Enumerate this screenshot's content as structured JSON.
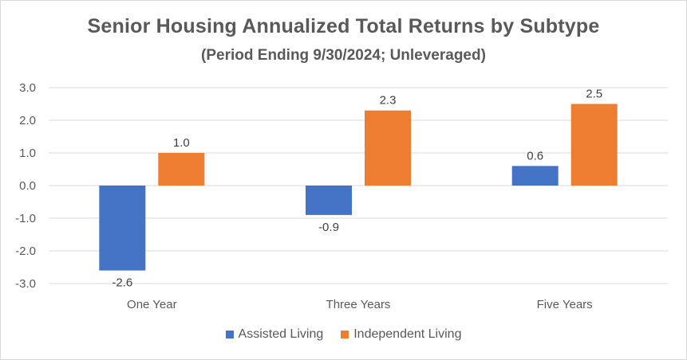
{
  "chart_data": {
    "type": "bar",
    "title": "Senior Housing Annualized Total Returns by Subtype",
    "subtitle": "(Period Ending 9/30/2024; Unleveraged)",
    "categories": [
      "One Year",
      "Three Years",
      "Five Years"
    ],
    "series": [
      {
        "name": "Assisted Living",
        "values": [
          -2.6,
          -0.9,
          0.6
        ],
        "labels": [
          "-2.6",
          "-0.9",
          "0.6"
        ],
        "color": "#4472c4"
      },
      {
        "name": "Independent Living",
        "values": [
          1.0,
          2.3,
          2.5
        ],
        "labels": [
          "1.0",
          "2.3",
          "2.5"
        ],
        "color": "#ed7d31"
      }
    ],
    "ylim": [
      -3.0,
      3.0
    ],
    "yticks": [
      "3.0",
      "2.0",
      "1.0",
      "0.0",
      "-1.0",
      "-2.0",
      "-3.0"
    ],
    "ytick_values": [
      3,
      2,
      1,
      0,
      -1,
      -2,
      -3
    ],
    "grid": true,
    "legend_position": "bottom"
  }
}
